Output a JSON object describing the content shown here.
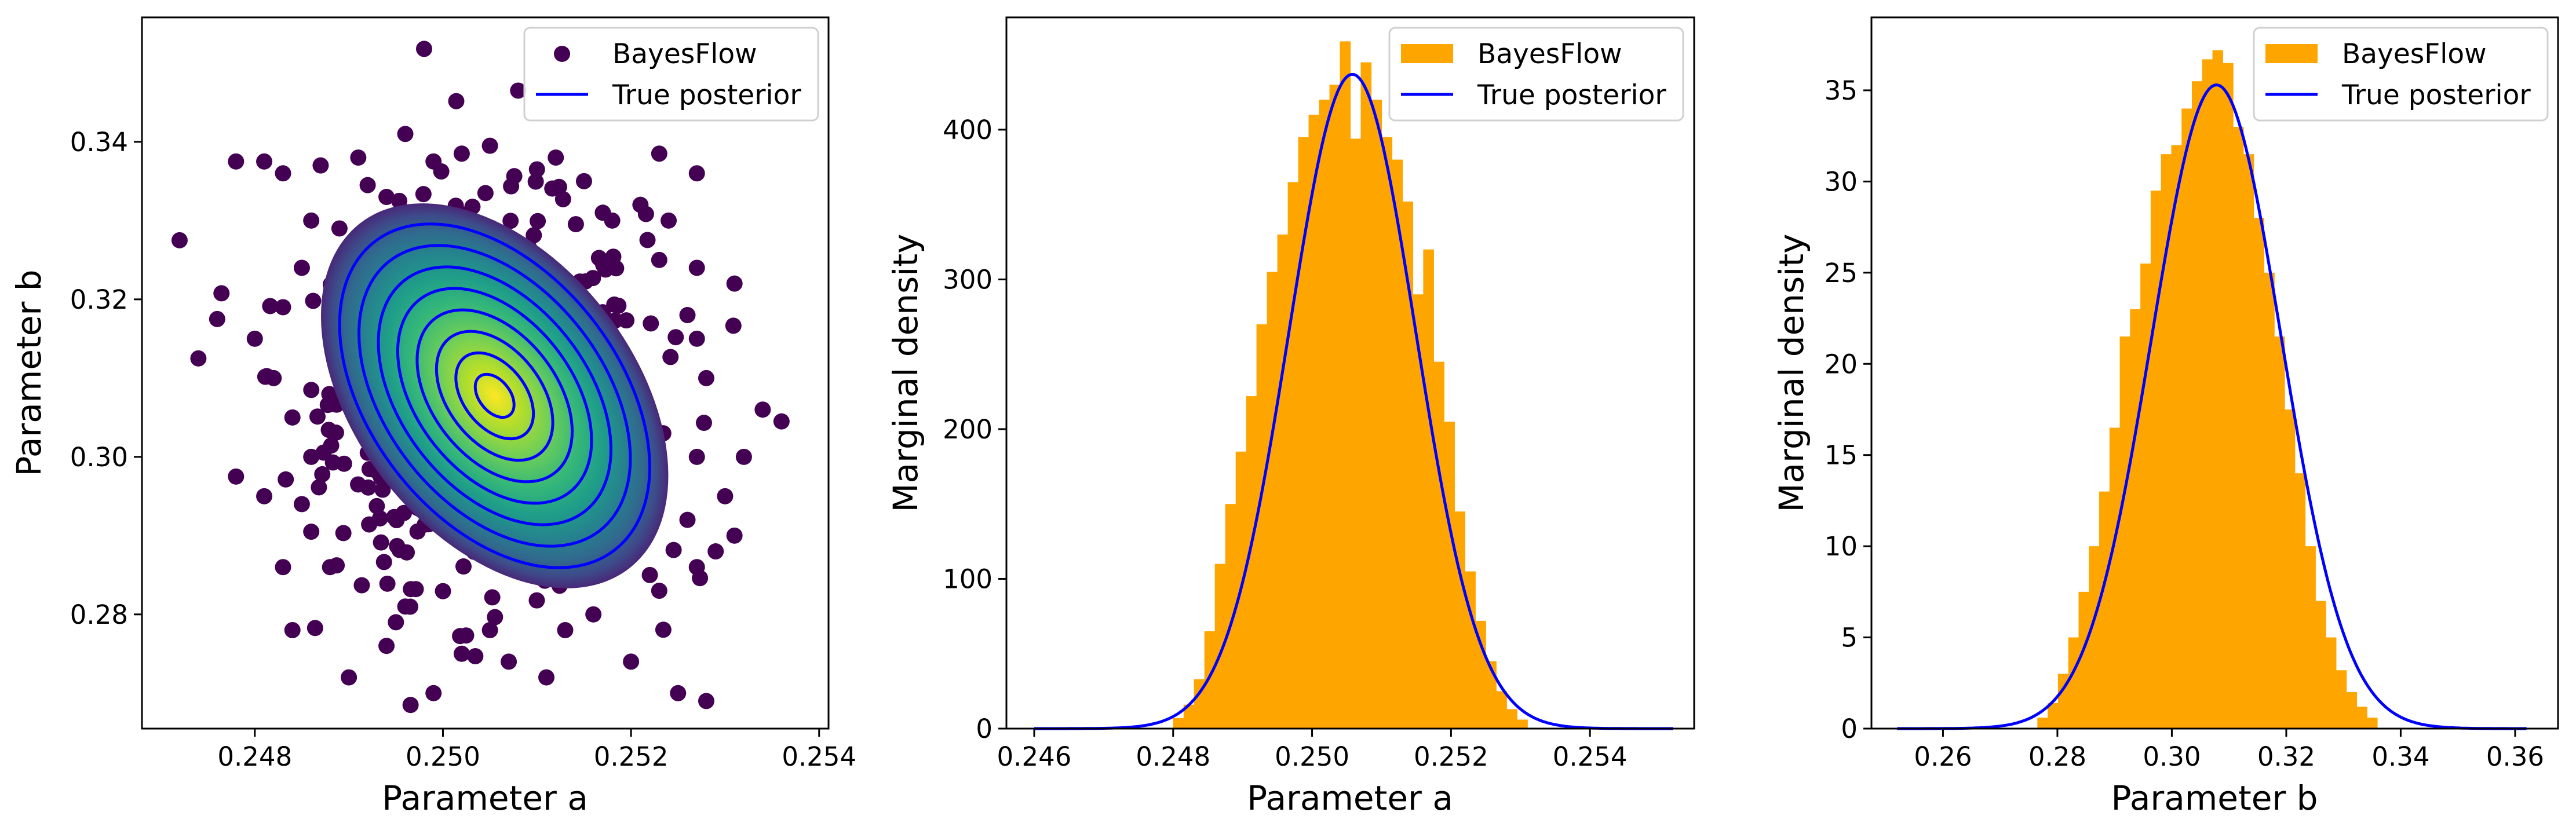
{
  "figure": {
    "panels": [
      {
        "xlabel": "Parameter a",
        "ylabel": "Parameter b",
        "legend": [
          "BayesFlow",
          "True posterior"
        ]
      },
      {
        "xlabel": "Parameter a",
        "ylabel": "Marginal density",
        "legend": [
          "BayesFlow",
          "True posterior"
        ]
      },
      {
        "xlabel": "Parameter b",
        "ylabel": "Marginal density",
        "legend": [
          "BayesFlow",
          "True posterior"
        ]
      }
    ]
  },
  "chart_data": [
    {
      "type": "scatter",
      "title": "",
      "xlabel": "Parameter a",
      "ylabel": "Parameter b",
      "xlim": [
        0.2468,
        0.2541
      ],
      "ylim": [
        0.2655,
        0.3558
      ],
      "xticks": [
        "0.248",
        "0.250",
        "0.252",
        "0.254"
      ],
      "yticks": [
        "0.28",
        "0.30",
        "0.32",
        "0.34"
      ],
      "grid": false,
      "legend_position": "top-right",
      "series": [
        {
          "name": "BayesFlow",
          "kind": "scatter-density",
          "colormap": "viridis",
          "center": [
            0.2505,
            0.3075
          ],
          "std": [
            0.00082,
            0.0115
          ],
          "points_outer": [
            [
              0.2498,
              0.3518
            ],
            [
              0.2472,
              0.3275
            ],
            [
              0.2476,
              0.3175
            ],
            [
              0.2478,
              0.3375
            ],
            [
              0.2481,
              0.3375
            ],
            [
              0.2483,
              0.336
            ],
            [
              0.2487,
              0.337
            ],
            [
              0.2491,
              0.338
            ],
            [
              0.2496,
              0.341
            ],
            [
              0.2492,
              0.3345
            ],
            [
              0.2486,
              0.33
            ],
            [
              0.248,
              0.315
            ],
            [
              0.2474,
              0.3125
            ],
            [
              0.2478,
              0.2975
            ],
            [
              0.2481,
              0.295
            ],
            [
              0.2483,
              0.286
            ],
            [
              0.2486,
              0.2905
            ],
            [
              0.2484,
              0.278
            ],
            [
              0.249,
              0.272
            ],
            [
              0.2494,
              0.276
            ],
            [
              0.2496,
              0.281
            ],
            [
              0.2499,
              0.27
            ],
            [
              0.2502,
              0.275
            ],
            [
              0.2507,
              0.274
            ],
            [
              0.2511,
              0.272
            ],
            [
              0.2516,
              0.28
            ],
            [
              0.252,
              0.274
            ],
            [
              0.2525,
              0.27
            ],
            [
              0.2528,
              0.269
            ],
            [
              0.2523,
              0.283
            ],
            [
              0.2527,
              0.286
            ],
            [
              0.2529,
              0.288
            ],
            [
              0.2531,
              0.29
            ],
            [
              0.253,
              0.295
            ],
            [
              0.2532,
              0.3
            ],
            [
              0.2536,
              0.3045
            ],
            [
              0.2534,
              0.306
            ],
            [
              0.2527,
              0.315
            ],
            [
              0.2531,
              0.322
            ],
            [
              0.2527,
              0.324
            ],
            [
              0.2524,
              0.33
            ],
            [
              0.2521,
              0.332
            ],
            [
              0.2517,
              0.331
            ],
            [
              0.2523,
              0.3385
            ],
            [
              0.2527,
              0.336
            ],
            [
              0.2508,
              0.3465
            ],
            [
              0.2505,
              0.3395
            ],
            [
              0.251,
              0.3365
            ],
            [
              0.2515,
              0.335
            ],
            [
              0.2512,
              0.338
            ],
            [
              0.2502,
              0.3385
            ],
            [
              0.2499,
              0.3375
            ],
            [
              0.2485,
              0.324
            ],
            [
              0.2483,
              0.319
            ],
            [
              0.2482,
              0.31
            ],
            [
              0.2484,
              0.305
            ],
            [
              0.2486,
              0.3
            ],
            [
              0.2485,
              0.294
            ],
            [
              0.2488,
              0.286
            ],
            [
              0.2495,
              0.279
            ],
            [
              0.2505,
              0.278
            ],
            [
              0.2513,
              0.278
            ],
            [
              0.2522,
              0.285
            ],
            [
              0.2526,
              0.292
            ],
            [
              0.2527,
              0.3
            ],
            [
              0.2528,
              0.31
            ],
            [
              0.2526,
              0.318
            ],
            [
              0.2523,
              0.325
            ],
            [
              0.2518,
              0.33
            ],
            [
              0.2494,
              0.333
            ],
            [
              0.2489,
              0.329
            ],
            [
              0.249,
              0.323
            ]
          ]
        },
        {
          "name": "True posterior",
          "kind": "contour",
          "color": "#0000ff",
          "center": [
            0.25055,
            0.30775
          ],
          "semi_axes": [
            0.00132,
            0.0248
          ],
          "levels": 8
        }
      ]
    },
    {
      "type": "bar",
      "title": "",
      "xlabel": "Parameter a",
      "ylabel": "Marginal density",
      "xlim": [
        0.2456,
        0.2555
      ],
      "ylim": [
        0,
        475
      ],
      "xticks": [
        "0.246",
        "0.248",
        "0.250",
        "0.252",
        "0.254"
      ],
      "yticks": [
        "0",
        "100",
        "200",
        "300",
        "400"
      ],
      "grid": false,
      "legend_position": "top-right",
      "series": [
        {
          "name": "BayesFlow",
          "kind": "histogram",
          "color": "#ffa500",
          "bins": [
            {
              "x0": 0.248,
              "x1": 0.24815,
              "y": 7
            },
            {
              "x0": 0.24815,
              "x1": 0.2483,
              "y": 16
            },
            {
              "x0": 0.2483,
              "x1": 0.24845,
              "y": 33
            },
            {
              "x0": 0.24845,
              "x1": 0.2486,
              "y": 65
            },
            {
              "x0": 0.2486,
              "x1": 0.24875,
              "y": 110
            },
            {
              "x0": 0.24875,
              "x1": 0.2489,
              "y": 150
            },
            {
              "x0": 0.2489,
              "x1": 0.24905,
              "y": 185
            },
            {
              "x0": 0.24905,
              "x1": 0.2492,
              "y": 222
            },
            {
              "x0": 0.2492,
              "x1": 0.24935,
              "y": 270
            },
            {
              "x0": 0.24935,
              "x1": 0.2495,
              "y": 305
            },
            {
              "x0": 0.2495,
              "x1": 0.24965,
              "y": 330
            },
            {
              "x0": 0.24965,
              "x1": 0.2498,
              "y": 365
            },
            {
              "x0": 0.2498,
              "x1": 0.24995,
              "y": 395
            },
            {
              "x0": 0.24995,
              "x1": 0.2501,
              "y": 410
            },
            {
              "x0": 0.2501,
              "x1": 0.25025,
              "y": 420
            },
            {
              "x0": 0.25025,
              "x1": 0.2504,
              "y": 430
            },
            {
              "x0": 0.2504,
              "x1": 0.25055,
              "y": 459
            },
            {
              "x0": 0.25055,
              "x1": 0.2507,
              "y": 394
            },
            {
              "x0": 0.2507,
              "x1": 0.25085,
              "y": 445
            },
            {
              "x0": 0.25085,
              "x1": 0.251,
              "y": 420
            },
            {
              "x0": 0.251,
              "x1": 0.25115,
              "y": 395
            },
            {
              "x0": 0.25115,
              "x1": 0.2513,
              "y": 380
            },
            {
              "x0": 0.2513,
              "x1": 0.25145,
              "y": 352
            },
            {
              "x0": 0.25145,
              "x1": 0.2516,
              "y": 290
            },
            {
              "x0": 0.2516,
              "x1": 0.25175,
              "y": 320
            },
            {
              "x0": 0.25175,
              "x1": 0.2519,
              "y": 245
            },
            {
              "x0": 0.2519,
              "x1": 0.25205,
              "y": 205
            },
            {
              "x0": 0.25205,
              "x1": 0.2522,
              "y": 145
            },
            {
              "x0": 0.2522,
              "x1": 0.25235,
              "y": 105
            },
            {
              "x0": 0.25235,
              "x1": 0.2525,
              "y": 72
            },
            {
              "x0": 0.2525,
              "x1": 0.25265,
              "y": 45
            },
            {
              "x0": 0.25265,
              "x1": 0.2528,
              "y": 25
            },
            {
              "x0": 0.2528,
              "x1": 0.25295,
              "y": 13
            },
            {
              "x0": 0.25295,
              "x1": 0.2531,
              "y": 6
            }
          ]
        },
        {
          "name": "True posterior",
          "kind": "line",
          "color": "#0000ff",
          "mean": 0.25058,
          "std": 0.000913,
          "peak": 437,
          "x_range": [
            0.246,
            0.2552
          ]
        }
      ]
    },
    {
      "type": "bar",
      "title": "",
      "xlabel": "Parameter b",
      "ylabel": "Marginal density",
      "xlim": [
        0.2475,
        0.3675
      ],
      "ylim": [
        0,
        39
      ],
      "xticks": [
        "0.26",
        "0.28",
        "0.30",
        "0.32",
        "0.34",
        "0.36"
      ],
      "yticks": [
        "0",
        "5",
        "10",
        "15",
        "20",
        "25",
        "30",
        "35"
      ],
      "grid": false,
      "legend_position": "top-right",
      "series": [
        {
          "name": "BayesFlow",
          "kind": "histogram",
          "color": "#ffa500",
          "bins": [
            {
              "x0": 0.2765,
              "x1": 0.2783,
              "y": 0.6
            },
            {
              "x0": 0.2783,
              "x1": 0.2801,
              "y": 1.4
            },
            {
              "x0": 0.2801,
              "x1": 0.2819,
              "y": 3.0
            },
            {
              "x0": 0.2819,
              "x1": 0.2837,
              "y": 5.0
            },
            {
              "x0": 0.2837,
              "x1": 0.2855,
              "y": 7.5
            },
            {
              "x0": 0.2855,
              "x1": 0.2873,
              "y": 10.0
            },
            {
              "x0": 0.2873,
              "x1": 0.2891,
              "y": 13.0
            },
            {
              "x0": 0.2891,
              "x1": 0.2909,
              "y": 16.5
            },
            {
              "x0": 0.2909,
              "x1": 0.2927,
              "y": 21.5
            },
            {
              "x0": 0.2927,
              "x1": 0.2945,
              "y": 23.0
            },
            {
              "x0": 0.2945,
              "x1": 0.2963,
              "y": 25.5
            },
            {
              "x0": 0.2963,
              "x1": 0.2981,
              "y": 29.5
            },
            {
              "x0": 0.2981,
              "x1": 0.2999,
              "y": 31.5
            },
            {
              "x0": 0.2999,
              "x1": 0.3017,
              "y": 32.0
            },
            {
              "x0": 0.3017,
              "x1": 0.3035,
              "y": 34.0
            },
            {
              "x0": 0.3035,
              "x1": 0.3053,
              "y": 35.5
            },
            {
              "x0": 0.3053,
              "x1": 0.3071,
              "y": 36.7
            },
            {
              "x0": 0.3071,
              "x1": 0.3089,
              "y": 37.2
            },
            {
              "x0": 0.3089,
              "x1": 0.3107,
              "y": 36.5
            },
            {
              "x0": 0.3107,
              "x1": 0.3125,
              "y": 33.0
            },
            {
              "x0": 0.3125,
              "x1": 0.3143,
              "y": 31.5
            },
            {
              "x0": 0.3143,
              "x1": 0.3161,
              "y": 28.0
            },
            {
              "x0": 0.3161,
              "x1": 0.3179,
              "y": 25.0
            },
            {
              "x0": 0.3179,
              "x1": 0.3197,
              "y": 21.5
            },
            {
              "x0": 0.3197,
              "x1": 0.3215,
              "y": 17.5
            },
            {
              "x0": 0.3215,
              "x1": 0.3233,
              "y": 14.0
            },
            {
              "x0": 0.3233,
              "x1": 0.3251,
              "y": 10.0
            },
            {
              "x0": 0.3251,
              "x1": 0.3269,
              "y": 7.0
            },
            {
              "x0": 0.3269,
              "x1": 0.3287,
              "y": 5.0
            },
            {
              "x0": 0.3287,
              "x1": 0.3305,
              "y": 3.2
            },
            {
              "x0": 0.3305,
              "x1": 0.3323,
              "y": 2.0
            },
            {
              "x0": 0.3323,
              "x1": 0.3341,
              "y": 1.2
            },
            {
              "x0": 0.3341,
              "x1": 0.3359,
              "y": 0.6
            }
          ]
        },
        {
          "name": "True posterior",
          "kind": "line",
          "color": "#0000ff",
          "mean": 0.3078,
          "std": 0.01135,
          "peak": 35.3,
          "x_range": [
            0.252,
            0.362
          ]
        }
      ]
    }
  ]
}
